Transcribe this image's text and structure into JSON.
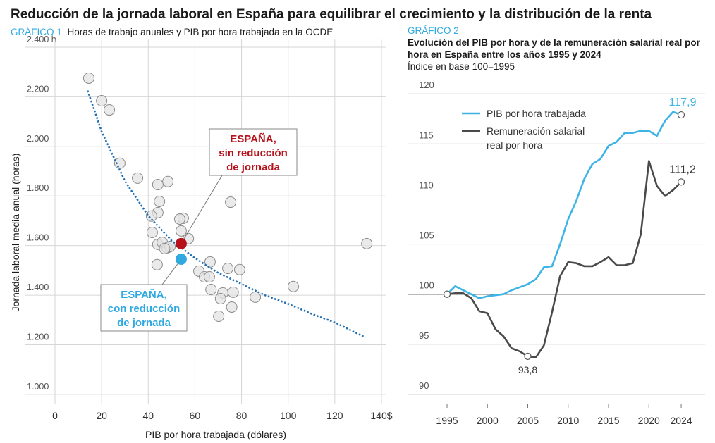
{
  "title": "Reducción de la jornada laboral en España para equilibrar el crecimiento y la distribución de la renta",
  "chart_data": [
    {
      "type": "scatter",
      "label": "GRÁFICO 1",
      "title": "Horas de trabajo anuales y PIB por hora trabajada en la OCDE",
      "x_label": "PIB por hora trabajada (dólares)",
      "y_label": "Jornada laboral media anual (horas)",
      "xlim": [
        0,
        142
      ],
      "ylim": [
        960,
        2430
      ],
      "xticks": [
        0,
        20,
        40,
        60,
        80,
        100,
        120,
        {
          "value": 140,
          "label": "140$"
        }
      ],
      "yticks": [
        {
          "value": 1000,
          "label": "1.000"
        },
        {
          "value": 1200,
          "label": "1.200"
        },
        {
          "value": 1400,
          "label": "1.400"
        },
        {
          "value": 1600,
          "label": "1.600"
        },
        {
          "value": 1800,
          "label": "1.800"
        },
        {
          "value": 2000,
          "label": "2.000"
        },
        {
          "value": 2200,
          "label": "2.200"
        },
        {
          "value": 2400,
          "label": "2.400 h"
        }
      ],
      "grid": true,
      "color": "#e3e3e3",
      "x": [
        14.5,
        20,
        23.3,
        27.8,
        35.4,
        48.4,
        44.1,
        44.8,
        44.1,
        41.4,
        55,
        53.5,
        75.3,
        54.1,
        41.7,
        57.2,
        44.1,
        46,
        48.1,
        49.3,
        47,
        43.8,
        66.5,
        61.7,
        64.1,
        66.2,
        74.1,
        79.2,
        66.9,
        72,
        71,
        76.4,
        75.8,
        70.2,
        85.9,
        102.2,
        133.7
      ],
      "y": [
        2275,
        2184,
        2147,
        1932,
        1872,
        1858,
        1846,
        1778,
        1733,
        1719,
        1710,
        1707,
        1775,
        1659,
        1653,
        1628,
        1605,
        1613,
        1591,
        1596,
        1588,
        1523,
        1534,
        1497,
        1474,
        1474,
        1508,
        1503,
        1423,
        1409,
        1386,
        1412,
        1352,
        1315,
        1392,
        1435,
        1608
      ],
      "trend": {
        "color": "#1f6fb5",
        "x": [
          14,
          20,
          30,
          40,
          50,
          60,
          70,
          80,
          90,
          100,
          110,
          120,
          133
        ],
        "y": [
          2225,
          2060,
          1860,
          1720,
          1620,
          1550,
          1490,
          1445,
          1400,
          1365,
          1325,
          1290,
          1230
        ]
      },
      "highlights": [
        {
          "label": [
            "ESPAÑA,",
            "sin reducción",
            "de jornada"
          ],
          "color": "#b5121b",
          "x": 54.1,
          "y": 1608
        },
        {
          "label": [
            "ESPAÑA,",
            "con reducción",
            "de jornada"
          ],
          "color": "#2fa9e0",
          "x": 54.1,
          "y": 1545
        }
      ]
    },
    {
      "type": "line",
      "label": "GRÁFICO 2",
      "title": "Evolución del PIB por hora y de la remuneración salarial real por hora en España entre los años 1995 y 2024",
      "subtitle": "Índice en base 100=1995",
      "x": [
        1995,
        1996,
        1997,
        1998,
        1999,
        2000,
        2001,
        2002,
        2003,
        2004,
        2005,
        2006,
        2007,
        2008,
        2009,
        2010,
        2011,
        2012,
        2013,
        2014,
        2015,
        2016,
        2017,
        2018,
        2019,
        2020,
        2021,
        2022,
        2023,
        2024
      ],
      "xlim": [
        1990,
        2027
      ],
      "ylim": [
        89,
        123
      ],
      "xticks": [
        1995,
        2000,
        2005,
        2010,
        2015,
        2020,
        2024
      ],
      "yticks": [
        90,
        95,
        100,
        105,
        110,
        115,
        120
      ],
      "grid": true,
      "baseline": 100,
      "series": [
        {
          "name": "PIB por hora trabajada",
          "color": "#3db4e5",
          "values": [
            100,
            100.8,
            100.4,
            100,
            99.6,
            99.8,
            99.9,
            100,
            100.4,
            100.7,
            101,
            101.5,
            102.7,
            102.8,
            105,
            107.5,
            109.3,
            111.5,
            113,
            113.5,
            114.8,
            115.2,
            116.1,
            116.1,
            116.3,
            116.3,
            115.8,
            117.3,
            118.2,
            117.9
          ],
          "value_labels": [
            null,
            null,
            null,
            null,
            null,
            null,
            null,
            null,
            null,
            null,
            null,
            null,
            null,
            null,
            null,
            null,
            null,
            null,
            null,
            null,
            null,
            null,
            null,
            null,
            null,
            null,
            null,
            null,
            null,
            "117,9"
          ]
        },
        {
          "name": "Remuneración salarial real por hora",
          "color": "#4a4a4a",
          "values": [
            100,
            100.1,
            100.1,
            99.6,
            98.3,
            98.1,
            96.5,
            95.8,
            94.6,
            94.3,
            93.8,
            93.7,
            94.9,
            98.2,
            101.8,
            103.2,
            103.1,
            102.8,
            102.8,
            103.2,
            103.7,
            102.9,
            102.9,
            103.1,
            106,
            113.3,
            110.8,
            109.8,
            110.4,
            111.2
          ],
          "value_labels": [
            null,
            null,
            null,
            null,
            null,
            null,
            null,
            null,
            null,
            null,
            "93,8",
            null,
            null,
            null,
            null,
            null,
            null,
            null,
            null,
            null,
            null,
            null,
            null,
            null,
            null,
            null,
            null,
            null,
            null,
            "111,2"
          ]
        }
      ]
    }
  ]
}
